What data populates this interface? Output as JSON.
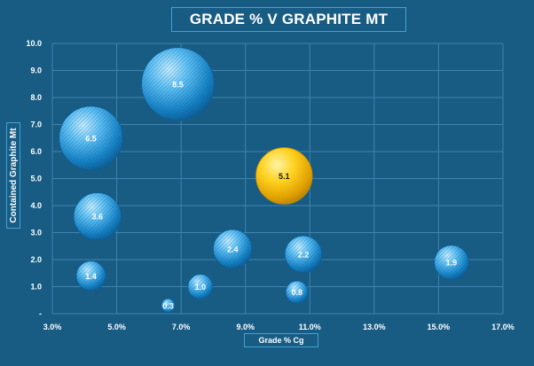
{
  "chart_data": {
    "type": "bubble",
    "title": "GRADE % V GRAPHITE MT",
    "xlabel": "Grade % Cg",
    "ylabel": "Contained Graphite Mt",
    "xlim": [
      3.0,
      17.0
    ],
    "ylim": [
      0,
      10.0
    ],
    "x_ticks": [
      "3.0%",
      "5.0%",
      "7.0%",
      "9.0%",
      "11.0%",
      "13.0%",
      "15.0%",
      "17.0%"
    ],
    "y_ticks": [
      "-",
      "1.0",
      "2.0",
      "3.0",
      "4.0",
      "5.0",
      "6.0",
      "7.0",
      "8.0",
      "9.0",
      "10.0"
    ],
    "grid": true,
    "points": [
      {
        "x": 6.9,
        "y": 8.5,
        "label": "8.5",
        "highlight": false
      },
      {
        "x": 4.2,
        "y": 6.5,
        "label": "6.5",
        "highlight": false
      },
      {
        "x": 4.4,
        "y": 3.6,
        "label": "3.6",
        "highlight": false
      },
      {
        "x": 4.2,
        "y": 1.4,
        "label": "1.4",
        "highlight": false
      },
      {
        "x": 6.6,
        "y": 0.3,
        "label": "0.3",
        "highlight": false
      },
      {
        "x": 7.6,
        "y": 1.0,
        "label": "1.0",
        "highlight": false
      },
      {
        "x": 8.6,
        "y": 2.4,
        "label": "2.4",
        "highlight": false
      },
      {
        "x": 10.2,
        "y": 5.1,
        "label": "5.1",
        "highlight": true
      },
      {
        "x": 10.8,
        "y": 2.2,
        "label": "2.2",
        "highlight": false
      },
      {
        "x": 10.6,
        "y": 0.8,
        "label": "0.8",
        "highlight": false
      },
      {
        "x": 15.4,
        "y": 1.9,
        "label": "1.9",
        "highlight": false
      }
    ],
    "colors": {
      "background": "#185c84",
      "grid": "#3f84b0",
      "bubble_base": "#1b8fd4",
      "bubble_highlight": "#8fd6ff",
      "highlight_bubble": "#f0b400",
      "highlight_bubble_light": "#ffe37a",
      "highlight_label": "#1a1a1a"
    }
  }
}
